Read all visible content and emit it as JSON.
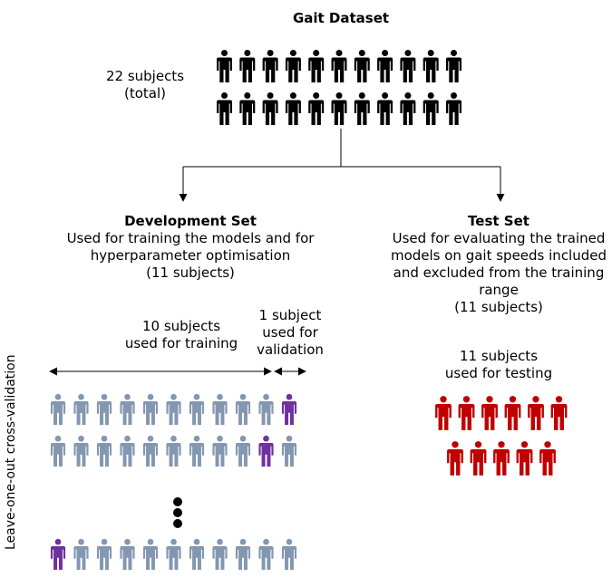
{
  "title": "Gait Dataset",
  "total": {
    "line1": "22 subjects",
    "line2": "(total)",
    "count": 22
  },
  "development": {
    "title": "Development Set",
    "line1": "Used for training the models and for",
    "line2": "hyperparameter optimisation",
    "line3": "(11 subjects)",
    "training_label_1": "10 subjects",
    "training_label_2": "used for training",
    "validation_label_1": "1 subject",
    "validation_label_2": "used for",
    "validation_label_3": "validation",
    "cross_validation_label": "Leave-one-out cross-validation",
    "rows_shown": 3
  },
  "test": {
    "title": "Test Set",
    "line1": "Used for evaluating the trained",
    "line2": "models on gait speeds included",
    "line3": "and excluded from the training",
    "line4": "range",
    "line5": "(11 subjects)",
    "testing_label_1": "11 subjects",
    "testing_label_2": "used for testing",
    "count": 11
  },
  "colors": {
    "dataset": "#000000",
    "training": "#8497b0",
    "validation": "#7030a0",
    "testing": "#c00000"
  }
}
